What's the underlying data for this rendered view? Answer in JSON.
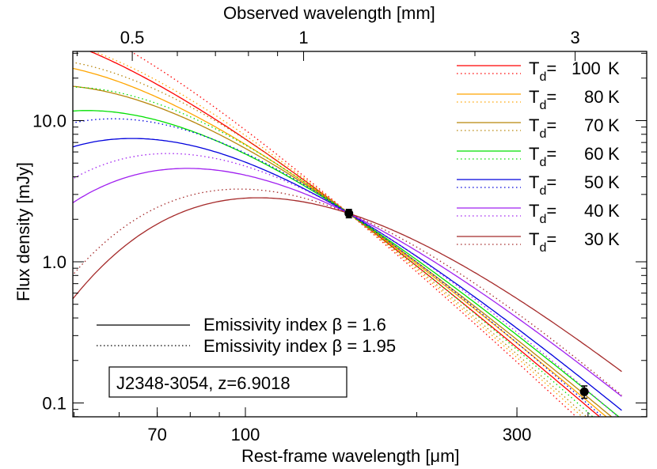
{
  "chart_data": {
    "type": "line",
    "title": "",
    "xlabel": "Rest-frame wavelength [μm]",
    "x2label": "Observed wavelength [mm]",
    "ylabel": "Flux density [mJy]",
    "xscale": "log",
    "yscale": "log",
    "xlim": [
      50,
      440
    ],
    "ylim": [
      0.085,
      30
    ],
    "x_ticks": [
      {
        "value": 70,
        "label": "70"
      },
      {
        "value": 100,
        "label": "100"
      },
      {
        "value": 300,
        "label": "300"
      }
    ],
    "x2_ticks": [
      {
        "value": 0.5,
        "label": "0.5"
      },
      {
        "value": 1,
        "label": "1"
      },
      {
        "value": 3,
        "label": "3"
      }
    ],
    "y_ticks": [
      {
        "value": 0.1,
        "label": "0.1"
      },
      {
        "value": 1.0,
        "label": "1.0"
      },
      {
        "value": 10.0,
        "label": "10.0"
      }
    ],
    "redshift": 6.9018,
    "annotation": "J2348-3054, z=6.9018",
    "series": [
      {
        "name": "Td=100 K",
        "temp": 100,
        "color": "#ff0000"
      },
      {
        "name": "Td=80 K",
        "temp": 80,
        "color": "#ffa500"
      },
      {
        "name": "Td=70 K",
        "temp": 70,
        "color": "#b8860b"
      },
      {
        "name": "Td=60 K",
        "temp": 60,
        "color": "#00e000"
      },
      {
        "name": "Td=50 K",
        "temp": 50,
        "color": "#0000dd"
      },
      {
        "name": "Td=40 K",
        "temp": 40,
        "color": "#a020f0"
      },
      {
        "name": "Td=30 K",
        "temp": 30,
        "color": "#a52a2a"
      }
    ],
    "line_styles": [
      {
        "beta": 1.6,
        "style": "solid",
        "label": "Emissivity index β = 1.6"
      },
      {
        "beta": 1.95,
        "style": "dotted",
        "label": "Emissivity index β = 1.95"
      }
    ],
    "data_points": [
      {
        "rest_wavelength_um": 152,
        "flux_mJy": 2.2,
        "err": 0.15
      },
      {
        "rest_wavelength_um": 394,
        "flux_mJy": 0.12,
        "err": 0.012
      }
    ],
    "legend_position": "upper right"
  },
  "legend": {
    "temps": [
      {
        "prefix": "T",
        "sub": "d",
        "eq": "=",
        "value": "100",
        "unit": "K"
      },
      {
        "prefix": "T",
        "sub": "d",
        "eq": "=",
        "value": "80",
        "unit": "K"
      },
      {
        "prefix": "T",
        "sub": "d",
        "eq": "=",
        "value": "70",
        "unit": "K"
      },
      {
        "prefix": "T",
        "sub": "d",
        "eq": "=",
        "value": "60",
        "unit": "K"
      },
      {
        "prefix": "T",
        "sub": "d",
        "eq": "=",
        "value": "50",
        "unit": "K"
      },
      {
        "prefix": "T",
        "sub": "d",
        "eq": "=",
        "value": "40",
        "unit": "K"
      },
      {
        "prefix": "T",
        "sub": "d",
        "eq": "=",
        "value": "30",
        "unit": "K"
      }
    ],
    "beta_solid": "Emissivity index β = 1.6",
    "beta_dotted": "Emissivity index β = 1.95"
  },
  "labels": {
    "top_axis": "Observed wavelength [mm]",
    "bottom_axis": "Rest-frame wavelength [μm]",
    "left_axis": "Flux density [mJy]",
    "annotation": "J2348-3054, z=6.9018"
  }
}
